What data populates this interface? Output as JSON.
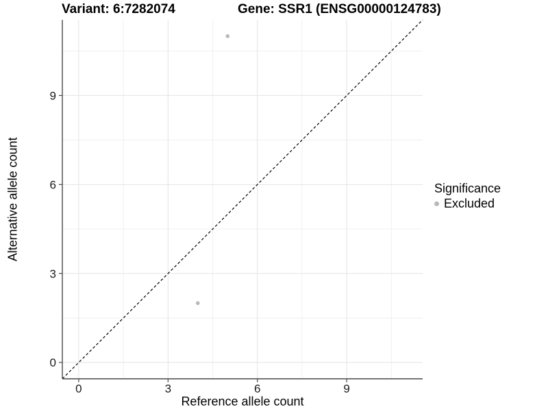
{
  "chart_data": {
    "type": "scatter",
    "title_left": "Variant: 6:7282074",
    "title_right": "Gene: SSR1 (ENSG00000124783)",
    "xlabel": "Reference allele count",
    "ylabel": "Alternative allele count",
    "xlim": [
      -0.55,
      11.55
    ],
    "ylim": [
      -0.55,
      11.55
    ],
    "x_ticks": [
      0,
      3,
      6,
      9
    ],
    "y_ticks": [
      0,
      3,
      6,
      9
    ],
    "x_minor_ticks": [
      1.5,
      4.5,
      7.5,
      10.5
    ],
    "y_minor_ticks": [
      1.5,
      4.5,
      7.5,
      10.5
    ],
    "grid": true,
    "identity_line": {
      "style": "dashed",
      "slope": 1,
      "intercept": 0,
      "color": "#000000"
    },
    "series": [
      {
        "name": "Excluded",
        "color": "#b8b8b8",
        "points": [
          {
            "x": 5,
            "y": 11
          },
          {
            "x": 4,
            "y": 2
          }
        ]
      }
    ],
    "legend": {
      "title": "Significance",
      "position": "right",
      "items": [
        {
          "label": "Excluded",
          "color": "#b8b8b8"
        }
      ]
    },
    "colors": {
      "background": "#ffffff",
      "axis_line": "#474747",
      "tick_mark": "#474747",
      "tick_label": "#1a1a1a",
      "grid_major": "#e3e3e3",
      "grid_minor": "#f0f0f0",
      "point": "#b8b8b8"
    }
  }
}
